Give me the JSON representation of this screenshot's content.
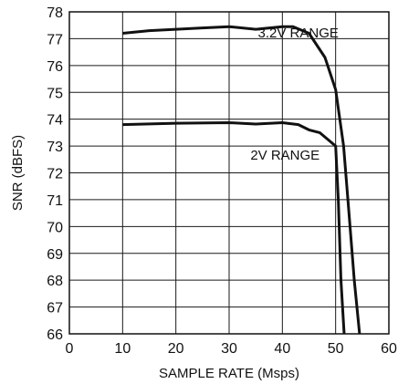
{
  "chart_data": {
    "type": "line",
    "title": "",
    "xlabel": "SAMPLE RATE (Msps)",
    "ylabel": "SNR (dBFS)",
    "xlim": [
      0,
      60
    ],
    "ylim": [
      66,
      78
    ],
    "x_ticks": [
      0,
      10,
      20,
      30,
      40,
      50,
      60
    ],
    "y_ticks": [
      66,
      67,
      68,
      69,
      70,
      71,
      72,
      73,
      74,
      75,
      76,
      77,
      78
    ],
    "grid": true,
    "legend": "none",
    "series": [
      {
        "label": "3.2V RANGE",
        "points": [
          [
            10,
            77.2
          ],
          [
            15,
            77.3
          ],
          [
            20,
            77.35
          ],
          [
            25,
            77.4
          ],
          [
            30,
            77.45
          ],
          [
            35,
            77.35
          ],
          [
            40,
            77.45
          ],
          [
            42,
            77.45
          ],
          [
            45,
            77.2
          ],
          [
            48,
            76.3
          ],
          [
            50,
            75.1
          ],
          [
            51.5,
            73.0
          ],
          [
            52.5,
            70.5
          ],
          [
            53.5,
            68.0
          ],
          [
            54.5,
            66.0
          ]
        ]
      },
      {
        "label": "2V RANGE",
        "points": [
          [
            10,
            73.8
          ],
          [
            20,
            73.85
          ],
          [
            30,
            73.87
          ],
          [
            35,
            73.82
          ],
          [
            40,
            73.87
          ],
          [
            43,
            73.8
          ],
          [
            45,
            73.6
          ],
          [
            47,
            73.5
          ],
          [
            50,
            73.0
          ],
          [
            50.5,
            71.0
          ],
          [
            51,
            68.0
          ],
          [
            51.6,
            66.0
          ]
        ]
      }
    ],
    "annotations": [
      {
        "text": "3.2V RANGE",
        "x": 35.4,
        "y": 77.05
      },
      {
        "text": "2V RANGE",
        "x": 34.0,
        "y": 72.5
      }
    ]
  }
}
